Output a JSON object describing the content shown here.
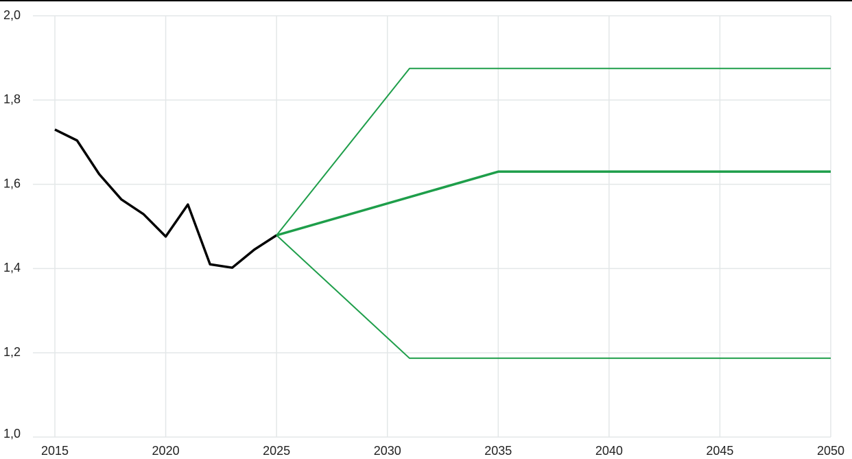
{
  "chart_data": {
    "type": "line",
    "xlim": [
      2015,
      2050
    ],
    "xticks": [
      2015,
      2020,
      2025,
      2030,
      2035,
      2040,
      2045,
      2050
    ],
    "ylim": [
      1.0,
      2.0
    ],
    "yticks": [
      {
        "value": 1.0,
        "label": "1,0"
      },
      {
        "value": 1.2,
        "label": "1,2"
      },
      {
        "value": 1.4,
        "label": "1,4"
      },
      {
        "value": 1.6,
        "label": "1,6"
      },
      {
        "value": 1.8,
        "label": "1,8"
      },
      {
        "value": 2.0,
        "label": "2,0"
      }
    ],
    "grid": true,
    "series": [
      {
        "color": "#000000",
        "x": [
          2015,
          2016,
          2017,
          2018,
          2019,
          2020,
          2021,
          2022,
          2023,
          2024,
          2025
        ],
        "values": [
          1.73,
          1.704,
          1.624,
          1.564,
          1.529,
          1.476,
          1.552,
          1.41,
          1.402,
          1.445,
          1.479
        ]
      },
      {
        "color": "#1e9e4a",
        "x": [
          2025,
          2031,
          2050
        ],
        "values": [
          1.479,
          1.875,
          1.875
        ]
      },
      {
        "color": "#1e9e4a",
        "x": [
          2025,
          2035,
          2050
        ],
        "values": [
          1.479,
          1.63,
          1.63
        ]
      },
      {
        "color": "#1e9e4a",
        "x": [
          2025,
          2031,
          2050
        ],
        "values": [
          1.479,
          1.187,
          1.187
        ]
      }
    ]
  }
}
